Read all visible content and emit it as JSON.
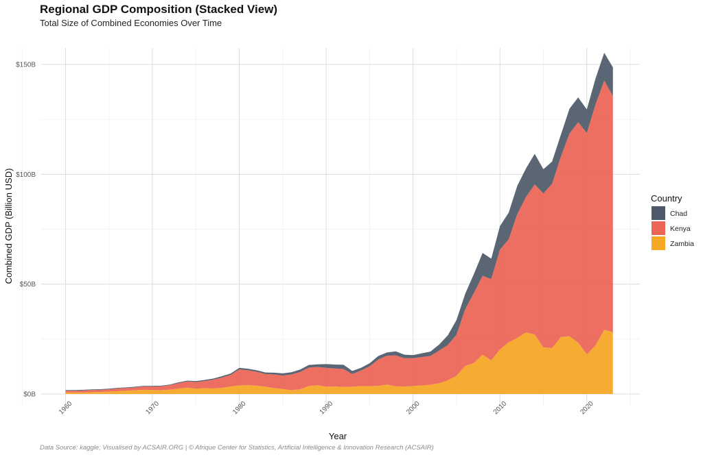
{
  "chart_data": {
    "type": "area",
    "stacked": true,
    "title": "Regional GDP Composition (Stacked View)",
    "subtitle": "Total Size of Combined Economies Over Time",
    "xlabel": "Year",
    "ylabel": "Combined GDP (Billion USD)",
    "caption": "Data Source: kaggle; Visualised by ACSAIR.ORG | © Afrique Center for Statistics, Artificial Intelligence & Innovation Research (ACSAIR)",
    "xlim": [
      1960,
      2023
    ],
    "ylim": [
      0,
      150
    ],
    "x_ticks": [
      1960,
      1970,
      1980,
      1990,
      2000,
      2010,
      2020
    ],
    "y_ticks": [
      0,
      50,
      100,
      150
    ],
    "y_tick_labels": [
      "$0B",
      "$50B",
      "$100B",
      "$150B"
    ],
    "legend": {
      "title": "Country",
      "position": "right"
    },
    "x": [
      1960,
      1961,
      1962,
      1963,
      1964,
      1965,
      1966,
      1967,
      1968,
      1969,
      1970,
      1971,
      1972,
      1973,
      1974,
      1975,
      1976,
      1977,
      1978,
      1979,
      1980,
      1981,
      1982,
      1983,
      1984,
      1985,
      1986,
      1987,
      1988,
      1989,
      1990,
      1991,
      1992,
      1993,
      1994,
      1995,
      1996,
      1997,
      1998,
      1999,
      2000,
      2001,
      2002,
      2003,
      2004,
      2005,
      2006,
      2007,
      2008,
      2009,
      2010,
      2011,
      2012,
      2013,
      2014,
      2015,
      2016,
      2017,
      2018,
      2019,
      2020,
      2021,
      2022,
      2023
    ],
    "series": [
      {
        "name": "Zambia",
        "color": "#F5A623",
        "values": [
          0.7,
          0.7,
          0.7,
          0.8,
          0.9,
          1.1,
          1.3,
          1.5,
          1.7,
          1.9,
          1.8,
          1.7,
          2.0,
          2.4,
          2.9,
          2.4,
          2.6,
          2.5,
          2.8,
          3.4,
          3.9,
          4.0,
          3.8,
          3.3,
          2.7,
          2.3,
          1.7,
          2.1,
          3.6,
          4.0,
          3.3,
          3.4,
          3.2,
          3.3,
          3.6,
          3.6,
          3.7,
          4.3,
          3.5,
          3.4,
          3.6,
          3.9,
          4.2,
          4.9,
          6.2,
          8.3,
          12.8,
          14.1,
          17.9,
          15.3,
          20.3,
          23.5,
          25.5,
          28.0,
          27.1,
          21.2,
          20.9,
          25.9,
          26.3,
          23.3,
          18.1,
          22.1,
          29.2,
          28.2
        ]
      },
      {
        "name": "Kenya",
        "color": "#EC6456",
        "values": [
          0.8,
          0.8,
          0.9,
          1.0,
          1.0,
          1.0,
          1.2,
          1.2,
          1.3,
          1.5,
          1.6,
          1.8,
          2.0,
          2.5,
          2.8,
          3.0,
          3.3,
          4.0,
          4.7,
          5.3,
          7.3,
          6.8,
          6.3,
          5.8,
          6.2,
          6.1,
          7.2,
          7.9,
          8.4,
          8.3,
          8.6,
          8.2,
          8.2,
          5.8,
          7.1,
          9.0,
          12.0,
          13.1,
          14.1,
          12.9,
          12.7,
          12.9,
          13.1,
          14.9,
          16.1,
          18.7,
          25.8,
          31.9,
          35.9,
          37.0,
          45.4,
          46.9,
          56.4,
          61.7,
          68.3,
          70.1,
          74.8,
          82.0,
          92.2,
          100.4,
          100.7,
          109.7,
          113.4,
          107.4
        ]
      },
      {
        "name": "Chad",
        "color": "#4E5A68",
        "values": [
          0.3,
          0.3,
          0.3,
          0.3,
          0.3,
          0.3,
          0.3,
          0.3,
          0.3,
          0.3,
          0.3,
          0.3,
          0.3,
          0.4,
          0.4,
          0.5,
          0.5,
          0.5,
          0.6,
          0.6,
          0.7,
          0.7,
          0.7,
          0.7,
          0.8,
          1.0,
          1.0,
          1.1,
          1.2,
          1.2,
          1.7,
          1.8,
          1.9,
          1.4,
          1.2,
          1.4,
          1.6,
          1.5,
          1.8,
          1.6,
          1.4,
          1.7,
          2.0,
          2.7,
          4.4,
          6.7,
          7.0,
          8.6,
          10.4,
          9.3,
          10.7,
          12.1,
          12.9,
          13.0,
          13.9,
          11.0,
          10.1,
          10.0,
          11.3,
          11.3,
          10.7,
          11.8,
          12.7,
          13.1
        ]
      }
    ]
  }
}
